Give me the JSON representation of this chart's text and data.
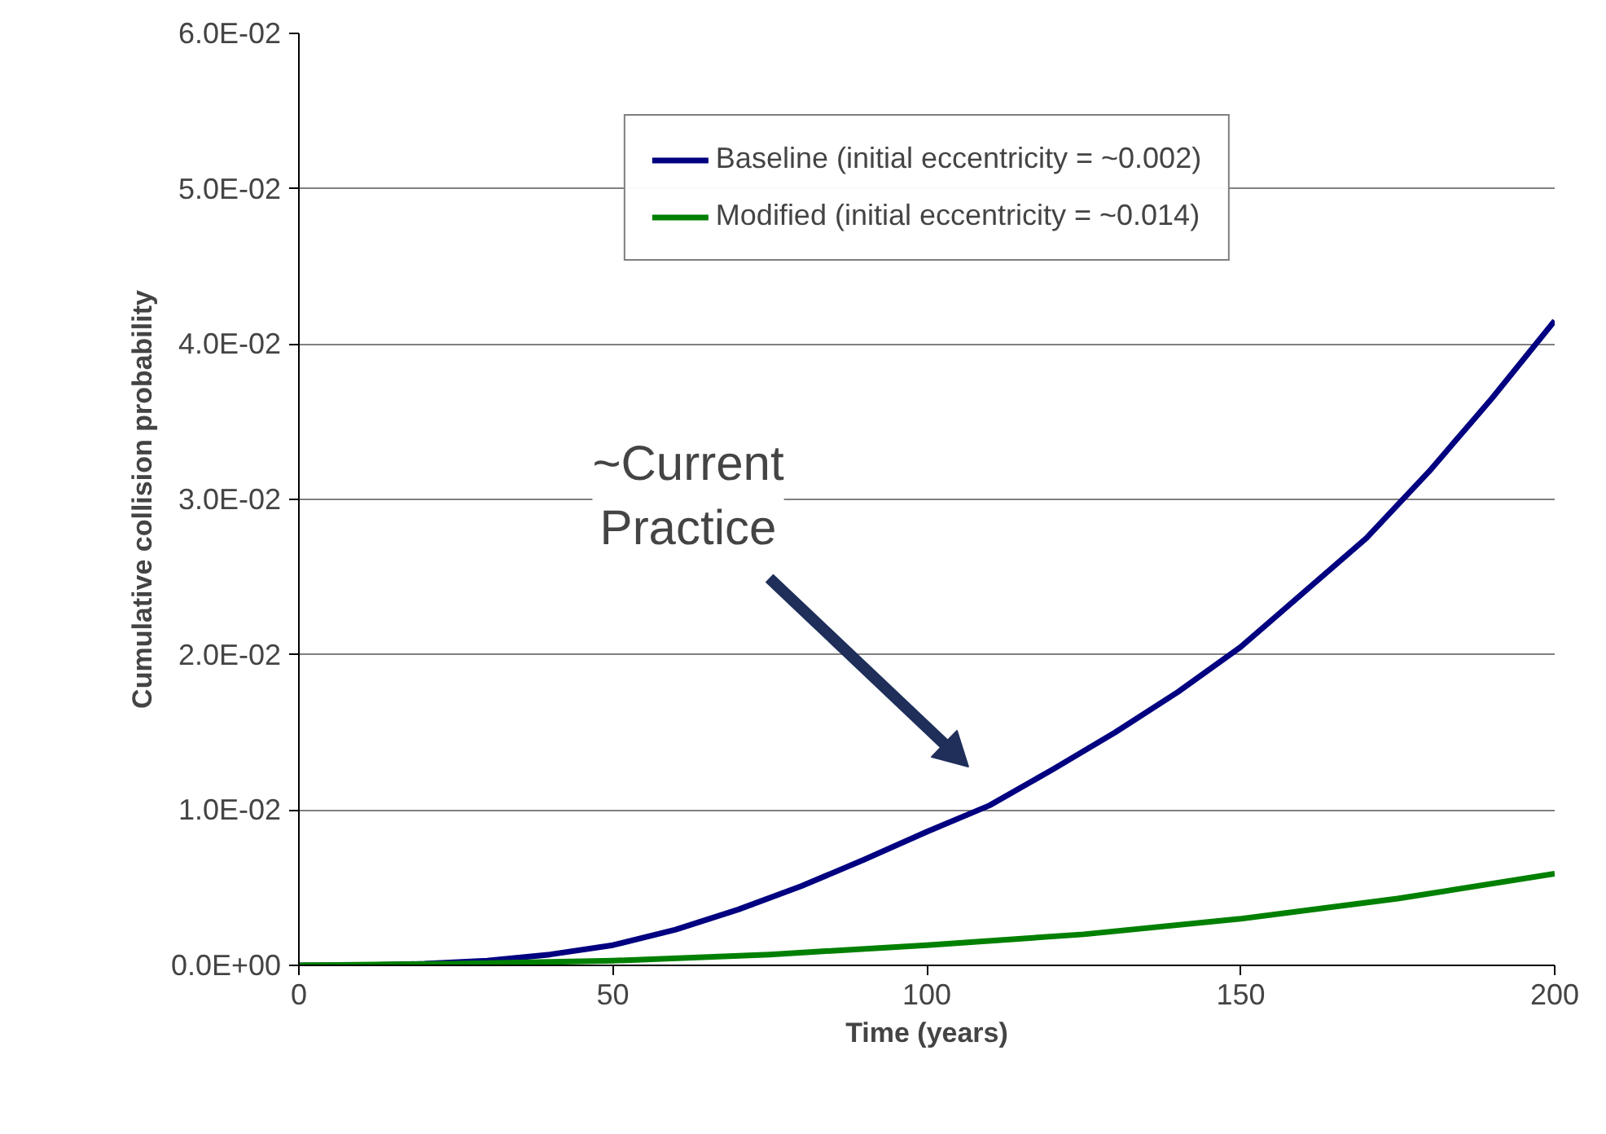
{
  "chart_data": {
    "type": "line",
    "xlabel": "Time (years)",
    "ylabel": "Cumulative collision probability",
    "xlim": [
      0,
      200
    ],
    "xticks": [
      0,
      50,
      100,
      150,
      200
    ],
    "ylim": [
      0,
      0.06
    ],
    "yticks": [
      {
        "value": 0,
        "label": "0.0E+00"
      },
      {
        "value": 0.01,
        "label": "1.0E-02"
      },
      {
        "value": 0.02,
        "label": "2.0E-02"
      },
      {
        "value": 0.03,
        "label": "3.0E-02"
      },
      {
        "value": 0.04,
        "label": "4.0E-02"
      },
      {
        "value": 0.05,
        "label": "5.0E-02"
      },
      {
        "value": 0.06,
        "label": "6.0E-02"
      }
    ],
    "grid": "y",
    "legend": "top",
    "marker": "none",
    "line_style": "solid",
    "series": [
      {
        "name": "Baseline (initial eccentricity = ~0.002)",
        "color": "#000080",
        "x": [
          0,
          10,
          20,
          30,
          40,
          50,
          60,
          70,
          80,
          90,
          100,
          110,
          120,
          130,
          140,
          150,
          160,
          170,
          180,
          190,
          200
        ],
        "values": [
          0,
          0,
          0.0001,
          0.0003,
          0.0007,
          0.0013,
          0.0023,
          0.0036,
          0.0051,
          0.0068,
          0.0086,
          0.0103,
          0.0126,
          0.015,
          0.0176,
          0.0205,
          0.024,
          0.0275,
          0.0318,
          0.0365,
          0.0415
        ]
      },
      {
        "name": "Modified (initial eccentricity = ~0.014)",
        "color": "#008000",
        "x": [
          0,
          25,
          50,
          75,
          100,
          125,
          150,
          175,
          200
        ],
        "values": [
          0,
          0.0001,
          0.0003,
          0.0007,
          0.0013,
          0.002,
          0.003,
          0.0043,
          0.0059
        ]
      }
    ],
    "annotations": [
      "~Current Practice"
    ]
  }
}
